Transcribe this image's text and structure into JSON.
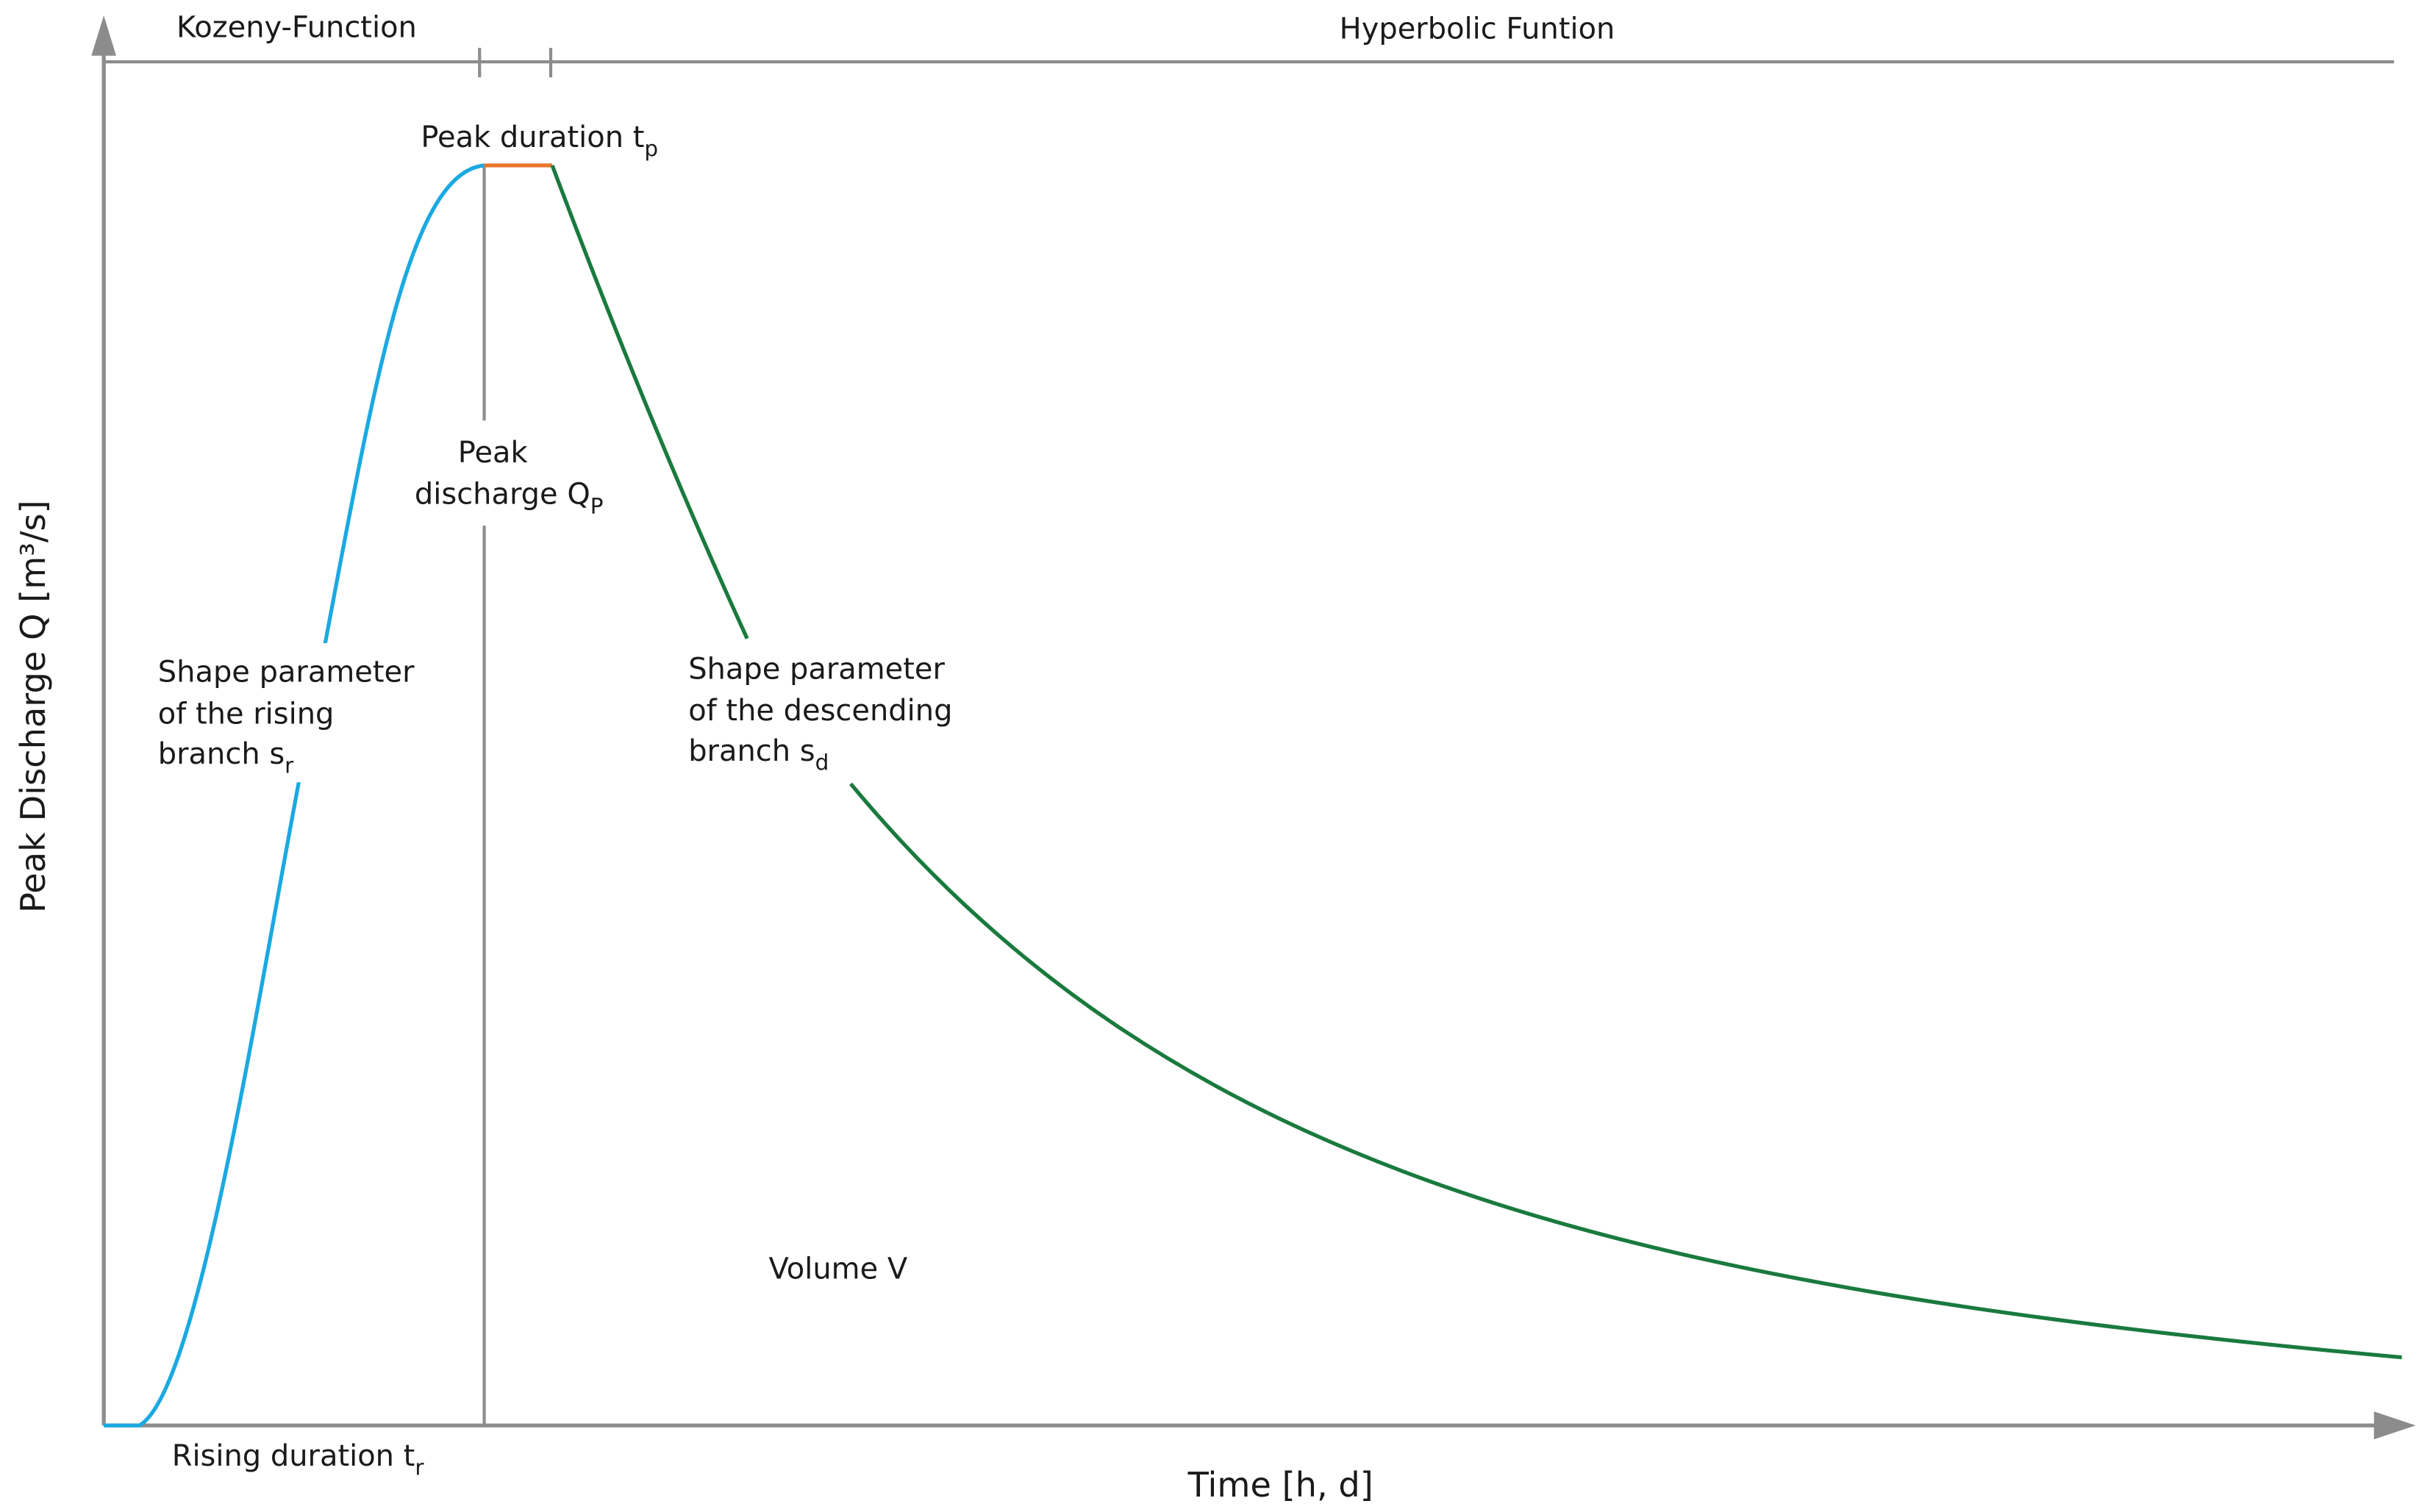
{
  "axes": {
    "y_label": "Peak Discharge Q [m³/s]",
    "x_label": "Time [h, d]"
  },
  "phases": [
    "Kozeny-Function",
    "Hyperbolic Funtion"
  ],
  "labels": {
    "peak_duration": {
      "text": "Peak duration t",
      "sub": "p"
    },
    "peak_discharge": {
      "lines": [
        "Peak",
        "discharge Q"
      ],
      "sub": "P"
    },
    "rising_shape": {
      "lines": [
        "Shape parameter",
        "of the rising",
        "branch s"
      ],
      "sub": "r"
    },
    "descending_shape": {
      "lines": [
        "Shape parameter",
        "of the descending",
        "branch s"
      ],
      "sub": "d"
    },
    "volume": "Volume V",
    "rising_duration": {
      "text": "Rising duration t",
      "sub": "r"
    }
  }
}
